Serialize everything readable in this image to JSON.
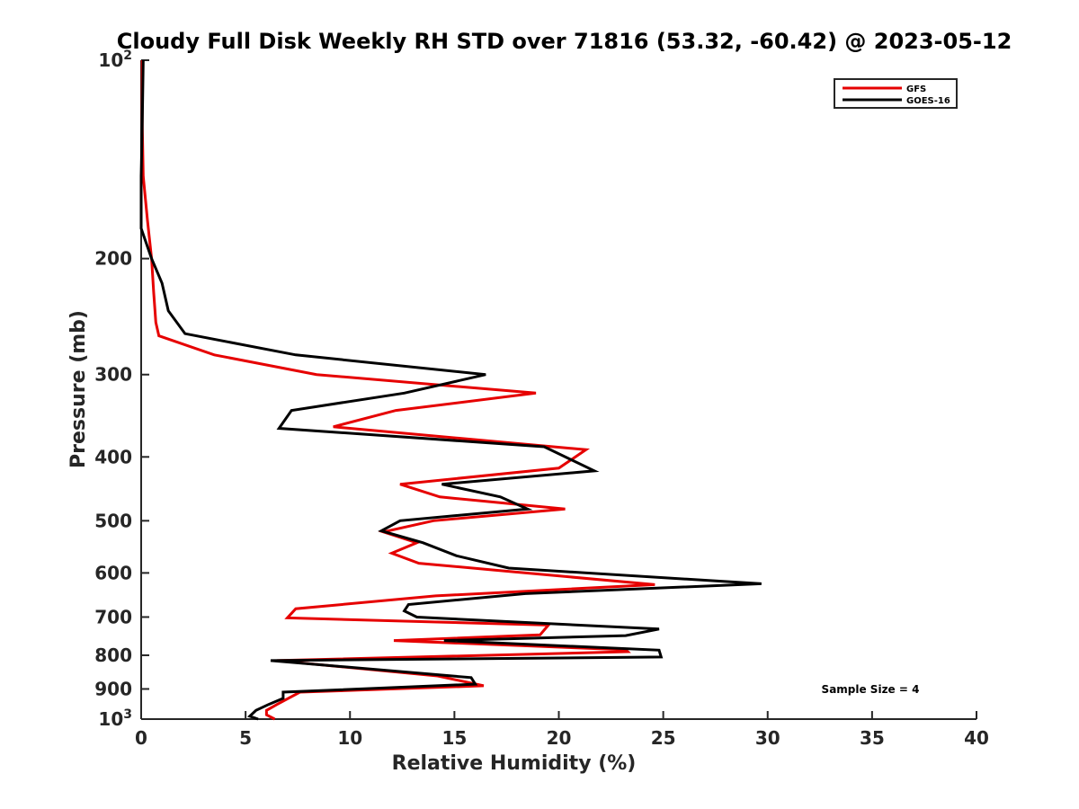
{
  "chart_data": {
    "type": "line",
    "title": "Cloudy Full Disk Weekly RH STD over 71816 (53.32, -60.42) @ 2023-05-12",
    "xlabel": "Relative Humidity (%)",
    "ylabel": "Pressure (mb)",
    "xlim": [
      0,
      40
    ],
    "ylim": [
      100,
      1000
    ],
    "y_scale": "log",
    "y_reversed": true,
    "xticks": [
      0,
      5,
      10,
      15,
      20,
      25,
      30,
      35,
      40
    ],
    "xtick_labels": [
      "0",
      "5",
      "10",
      "15",
      "20",
      "25",
      "30",
      "35",
      "40"
    ],
    "yticks": [
      100,
      200,
      300,
      400,
      500,
      600,
      700,
      800,
      900,
      1000
    ],
    "ytick_labels": [
      {
        "base": "10",
        "exp": "2"
      },
      {
        "base": "200",
        "exp": ""
      },
      {
        "base": "300",
        "exp": ""
      },
      {
        "base": "400",
        "exp": ""
      },
      {
        "base": "500",
        "exp": ""
      },
      {
        "base": "600",
        "exp": ""
      },
      {
        "base": "700",
        "exp": ""
      },
      {
        "base": "800",
        "exp": ""
      },
      {
        "base": "900",
        "exp": ""
      },
      {
        "base": "10",
        "exp": "3"
      }
    ],
    "grid": false,
    "legend_position": "top-right",
    "annotation": "Sample Size = 4",
    "series": [
      {
        "name": "GFS",
        "color": "#e60000",
        "points": [
          [
            0.05,
            100
          ],
          [
            0.05,
            125
          ],
          [
            0.1,
            150
          ],
          [
            0.3,
            175
          ],
          [
            0.5,
            200
          ],
          [
            0.6,
            225
          ],
          [
            0.7,
            250
          ],
          [
            0.85,
            262
          ],
          [
            3.5,
            280
          ],
          [
            8.4,
            300
          ],
          [
            18.9,
            320
          ],
          [
            12.2,
            340
          ],
          [
            9.2,
            360
          ],
          [
            21.3,
            390
          ],
          [
            20.0,
            416
          ],
          [
            12.4,
            440
          ],
          [
            14.3,
            460
          ],
          [
            20.3,
            480
          ],
          [
            14.0,
            500
          ],
          [
            11.6,
            520
          ],
          [
            13.2,
            540
          ],
          [
            12.0,
            560
          ],
          [
            13.3,
            580
          ],
          [
            24.6,
            625
          ],
          [
            14.1,
            650
          ],
          [
            7.4,
            680
          ],
          [
            7.0,
            702
          ],
          [
            19.5,
            720
          ],
          [
            19.1,
            745
          ],
          [
            12.1,
            760
          ],
          [
            23.2,
            785
          ],
          [
            23.3,
            790
          ],
          [
            6.5,
            815
          ],
          [
            14.2,
            860
          ],
          [
            16.4,
            890
          ],
          [
            7.6,
            910
          ],
          [
            6.5,
            950
          ],
          [
            6.0,
            970
          ],
          [
            6.0,
            985
          ],
          [
            6.4,
            1000
          ]
        ]
      },
      {
        "name": "GOES-16",
        "color": "#000000",
        "points": [
          [
            0.1,
            100
          ],
          [
            0.05,
            125
          ],
          [
            0.0,
            150
          ],
          [
            0.0,
            180
          ],
          [
            0.5,
            200
          ],
          [
            1.0,
            218
          ],
          [
            1.3,
            240
          ],
          [
            2.1,
            260
          ],
          [
            7.4,
            280
          ],
          [
            16.5,
            300
          ],
          [
            12.6,
            320
          ],
          [
            7.2,
            340
          ],
          [
            6.6,
            362
          ],
          [
            19.3,
            386
          ],
          [
            21.7,
            420
          ],
          [
            14.4,
            440
          ],
          [
            17.2,
            460
          ],
          [
            18.5,
            480
          ],
          [
            12.4,
            500
          ],
          [
            11.5,
            518
          ],
          [
            13.5,
            540
          ],
          [
            15.1,
            565
          ],
          [
            17.6,
            590
          ],
          [
            29.7,
            623
          ],
          [
            18.4,
            645
          ],
          [
            12.8,
            670
          ],
          [
            12.6,
            685
          ],
          [
            13.2,
            700
          ],
          [
            24.8,
            730
          ],
          [
            23.2,
            747
          ],
          [
            14.5,
            760
          ],
          [
            24.8,
            786
          ],
          [
            24.9,
            805
          ],
          [
            6.2,
            815
          ],
          [
            15.8,
            865
          ],
          [
            16.0,
            885
          ],
          [
            6.8,
            910
          ],
          [
            6.8,
            930
          ],
          [
            6.1,
            950
          ],
          [
            5.5,
            970
          ],
          [
            5.2,
            990
          ],
          [
            5.6,
            1000
          ]
        ]
      }
    ]
  }
}
